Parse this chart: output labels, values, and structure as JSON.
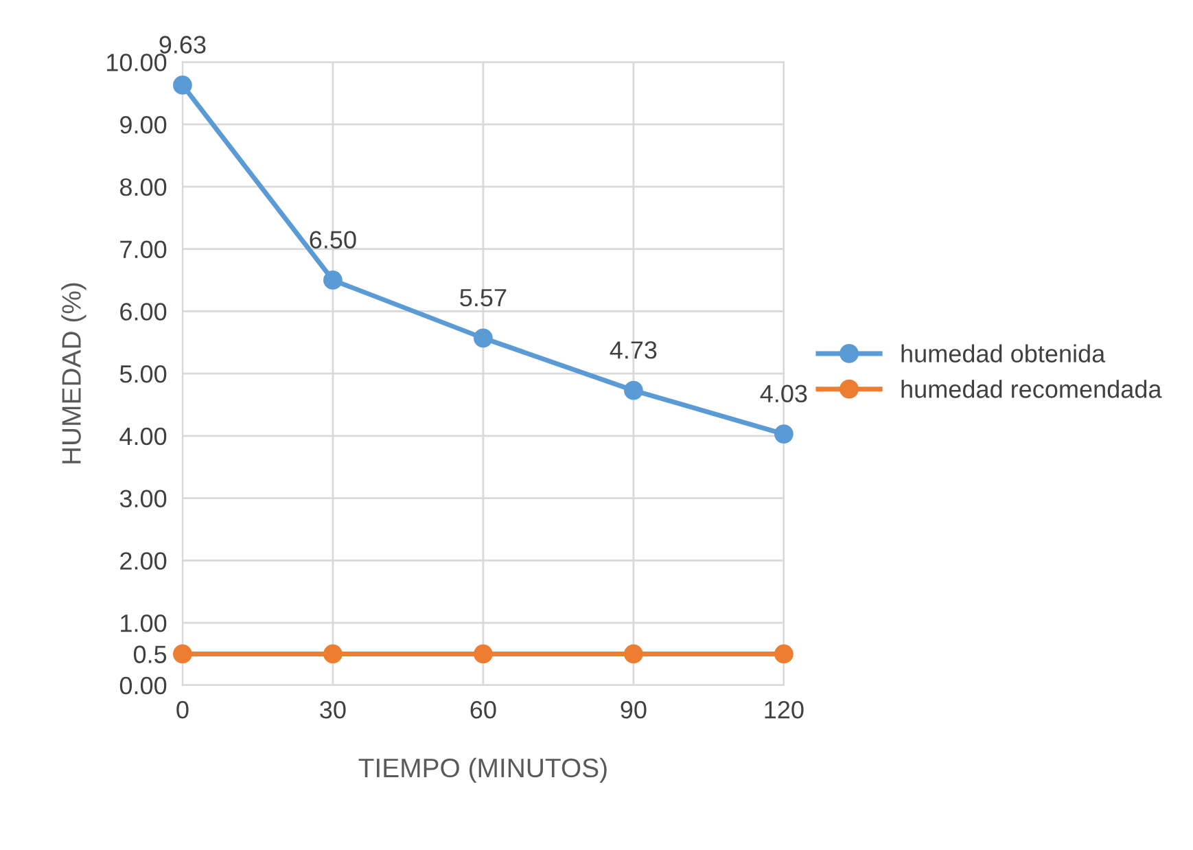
{
  "chart_data": {
    "type": "line",
    "xlabel": "TIEMPO (MINUTOS)",
    "ylabel": "HUMEDAD (%)",
    "x": [
      0,
      30,
      60,
      90,
      120
    ],
    "series": [
      {
        "name": "humedad obtenida",
        "color": "#5b9bd5",
        "values": [
          9.63,
          6.5,
          5.57,
          4.73,
          4.03
        ],
        "value_labels": [
          "9.63",
          "6.50",
          "5.57",
          "4.73",
          "4.03"
        ]
      },
      {
        "name": "humedad recomendada",
        "color": "#ed7d31",
        "values": [
          0.5,
          0.5,
          0.5,
          0.5,
          0.5
        ]
      }
    ],
    "xlim": [
      0,
      120
    ],
    "xticks": [
      0,
      30,
      60,
      90,
      120
    ],
    "ylim": [
      0,
      10
    ],
    "yticks": [
      {
        "value": 0,
        "label": "0.00"
      },
      {
        "value": 0.5,
        "label": "0.5"
      },
      {
        "value": 1,
        "label": "1.00"
      },
      {
        "value": 2,
        "label": "2.00"
      },
      {
        "value": 3,
        "label": "3.00"
      },
      {
        "value": 4,
        "label": "4.00"
      },
      {
        "value": 5,
        "label": "5.00"
      },
      {
        "value": 6,
        "label": "6.00"
      },
      {
        "value": 7,
        "label": "7.00"
      },
      {
        "value": 8,
        "label": "8.00"
      },
      {
        "value": 9,
        "label": "9.00"
      },
      {
        "value": 10,
        "label": "10.00"
      }
    ],
    "grid": true,
    "legend": "right",
    "marker": "circle",
    "line_style": "solid"
  }
}
